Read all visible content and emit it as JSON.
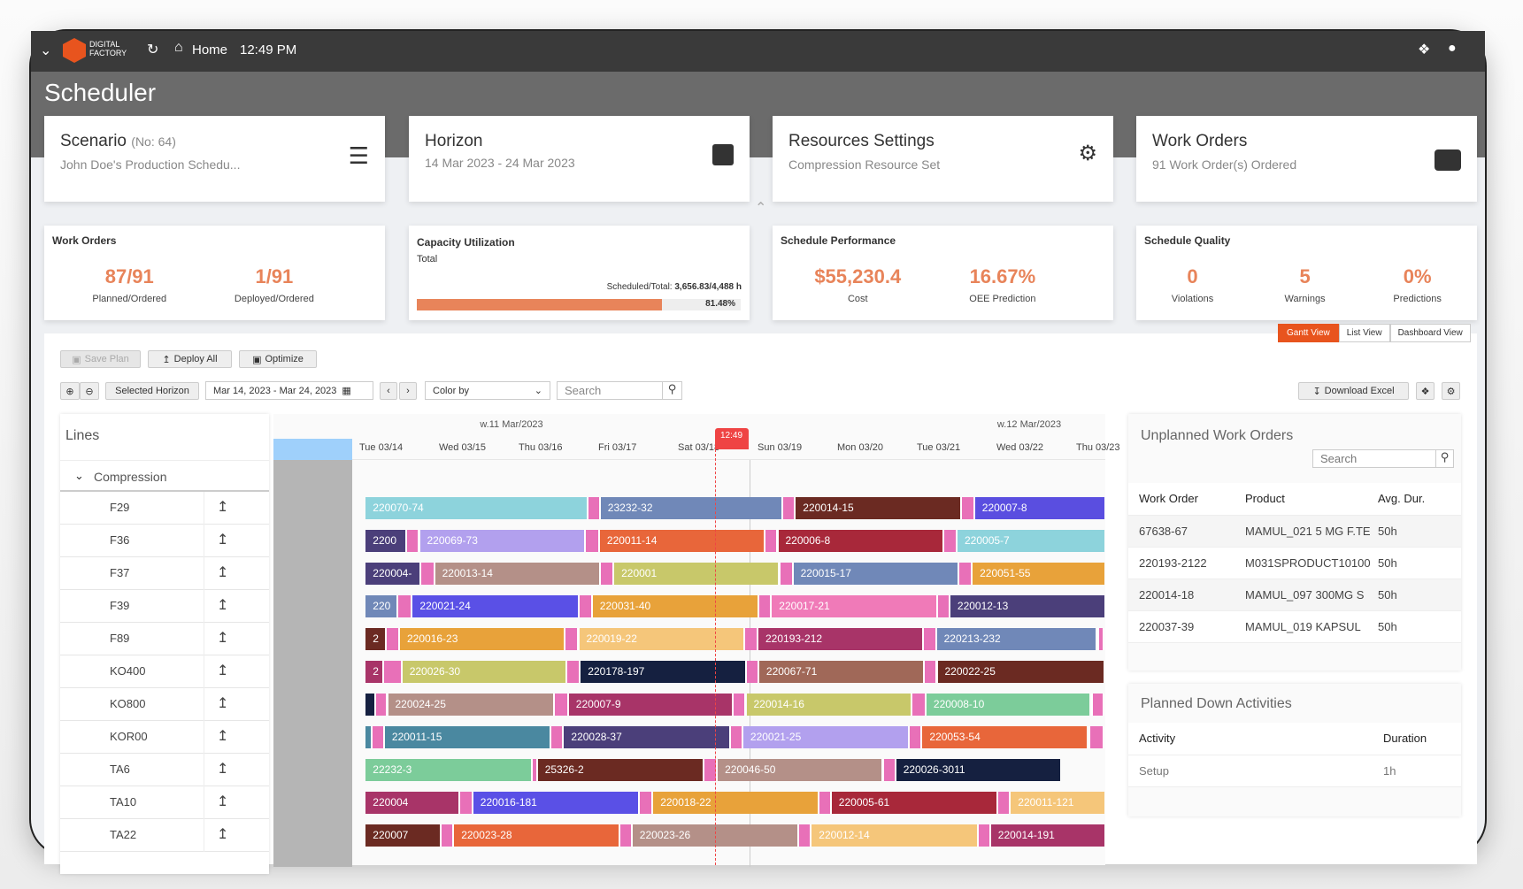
{
  "topbar": {
    "logo_line1": "DIGITAL",
    "logo_line2": "FACTORY",
    "home": "Home",
    "time": "12:49 PM"
  },
  "page_title": "Scheduler",
  "summary_cards": [
    {
      "title": "Scenario",
      "title_suffix": "(No: 64)",
      "subtitle": "John Doe's Production Schedu...",
      "icon": "list-icon"
    },
    {
      "title": "Horizon",
      "title_suffix": "",
      "subtitle": "14 Mar 2023 - 24 Mar 2023",
      "icon": "calendar-icon"
    },
    {
      "title": "Resources Settings",
      "title_suffix": "",
      "subtitle": "Compression Resource Set",
      "icon": "gears-icon"
    },
    {
      "title": "Work Orders",
      "title_suffix": "",
      "subtitle": "91 Work Order(s) Ordered",
      "icon": "list-alt-icon"
    }
  ],
  "kpi": {
    "work_orders": {
      "title": "Work Orders",
      "items": [
        {
          "value": "87/91",
          "label": "Planned/Ordered"
        },
        {
          "value": "1/91",
          "label": "Deployed/Ordered"
        }
      ]
    },
    "capacity": {
      "title": "Capacity Utilization",
      "sub": "Total",
      "scheduled_label": "Scheduled/Total:",
      "scheduled_value": "3,656.83/4,488 h",
      "percent_text": "81.48%",
      "percent": 81.48
    },
    "performance": {
      "title": "Schedule Performance",
      "items": [
        {
          "value": "$55,230.4",
          "label": "Cost"
        },
        {
          "value": "16.67%",
          "label": "OEE Prediction"
        }
      ]
    },
    "quality": {
      "title": "Schedule Quality",
      "items": [
        {
          "value": "0",
          "label": "Violations"
        },
        {
          "value": "5",
          "label": "Warnings"
        },
        {
          "value": "0%",
          "label": "Predictions"
        }
      ]
    }
  },
  "views": [
    "Gantt View",
    "List View",
    "Dashboard View"
  ],
  "toolbar": {
    "save": "Save Plan",
    "deploy": "Deploy All",
    "optimize": "Optimize",
    "selected_horizon": "Selected Horizon",
    "date_range": "Mar 14, 2023 - Mar 24, 2023",
    "color_by": "Color by",
    "search_placeholder": "Search",
    "download": "Download Excel"
  },
  "gantt": {
    "lines_title": "Lines",
    "group": "Compression",
    "weeks": [
      {
        "label": "w.11 Mar/2023",
        "day": 2
      },
      {
        "label": "w.12 Mar/2023",
        "day": 8.5
      }
    ],
    "days": [
      "Tue 03/14",
      "Wed 03/15",
      "Thu 03/16",
      "Fri 03/17",
      "Sat 03/18",
      "Sun 03/19",
      "Mon 03/20",
      "Tue 03/21",
      "Wed 03/22",
      "Thu 03/23"
    ],
    "now_label": "12:49",
    "now_day": 4.55,
    "rows": [
      {
        "line": "F29",
        "bars": [
          [
            0.17,
            2.94,
            "220070-74",
            "#8dd3dc"
          ],
          [
            3.12,
            5.39,
            "23232-32",
            "#7088b8"
          ],
          [
            5.57,
            7.63,
            "220014-15",
            "#6b2a22"
          ],
          [
            7.82,
            9.44,
            "220007-8",
            "#5a4ee0"
          ]
        ]
      },
      {
        "line": "F36",
        "bars": [
          [
            0.17,
            0.67,
            "2200",
            "#4b3f7a"
          ],
          [
            0.85,
            2.91,
            "220069-73",
            "#b2a0ee"
          ],
          [
            3.11,
            5.17,
            "220011-14",
            "#e8663a"
          ],
          [
            5.35,
            7.41,
            "220006-8",
            "#a8283a"
          ],
          [
            7.6,
            9.44,
            "220005-7",
            "#8dd3dc"
          ]
        ]
      },
      {
        "line": "F37",
        "bars": [
          [
            0.17,
            0.84,
            "220004-",
            "#4b3f7a"
          ],
          [
            1.04,
            3.1,
            "220013-14",
            "#b49088"
          ],
          [
            3.29,
            5.35,
            "220001",
            "#c8c86a"
          ],
          [
            5.54,
            7.6,
            "220015-17",
            "#7088b8"
          ],
          [
            7.79,
            9.44,
            "220051-55",
            "#e8a23a"
          ]
        ]
      },
      {
        "line": "F39",
        "bars": [
          [
            0.17,
            0.56,
            "220",
            "#7088b8"
          ],
          [
            0.76,
            2.83,
            "220021-24",
            "#5a50e6"
          ],
          [
            3.02,
            5.09,
            "220031-40",
            "#e8a23a"
          ],
          [
            5.27,
            7.33,
            "220017-21",
            "#f07ab8"
          ],
          [
            7.51,
            9.44,
            "220012-13",
            "#4b3f7a"
          ]
        ]
      },
      {
        "line": "F89",
        "bars": [
          [
            0.17,
            0.41,
            "2",
            "#6b2a22"
          ],
          [
            0.6,
            2.66,
            "220016-23",
            "#e8a23a"
          ],
          [
            2.85,
            4.91,
            "220019-22",
            "#f5c67a"
          ],
          [
            5.1,
            7.16,
            "220193-212",
            "#a83468"
          ],
          [
            7.34,
            9.33,
            "220213-232",
            "#7088b8"
          ]
        ]
      },
      {
        "line": "KO400",
        "bars": [
          [
            0.17,
            0.38,
            "2",
            "#a83468"
          ],
          [
            0.63,
            2.68,
            "220026-30",
            "#c8c86a"
          ],
          [
            2.87,
            4.93,
            "220178-197",
            "#152040"
          ],
          [
            5.11,
            7.17,
            "220067-71",
            "#a06858"
          ],
          [
            7.35,
            9.43,
            "220022-25",
            "#6b2a22"
          ]
        ]
      },
      {
        "line": "KO800",
        "bars": [
          [
            0.17,
            0.28,
            "",
            "#152040"
          ],
          [
            0.45,
            2.52,
            "220024-25",
            "#b49088"
          ],
          [
            2.72,
            4.77,
            "220007-9",
            "#a83468"
          ],
          [
            4.95,
            7.01,
            "220014-16",
            "#c8c86a"
          ],
          [
            7.21,
            9.26,
            "220008-10",
            "#7ccc9a"
          ]
        ]
      },
      {
        "line": "KOR00",
        "bars": [
          [
            0.17,
            0.23,
            "",
            "#4a88a0"
          ],
          [
            0.41,
            2.48,
            "220011-15",
            "#4a88a0"
          ],
          [
            2.66,
            4.73,
            "220028-37",
            "#4b3f7a"
          ],
          [
            4.91,
            6.98,
            "220021-25",
            "#b2a0ee"
          ],
          [
            7.16,
            9.22,
            "220053-54",
            "#e8663a"
          ]
        ]
      },
      {
        "line": "TA6",
        "bars": [
          [
            0.17,
            2.24,
            "22232-3",
            "#7ccc9a"
          ],
          [
            2.33,
            4.4,
            "25326-2",
            "#6b2a22"
          ],
          [
            4.59,
            6.65,
            "220046-50",
            "#b49088"
          ],
          [
            6.83,
            8.89,
            "220026-3011",
            "#152040"
          ]
        ]
      },
      {
        "line": "TA10",
        "bars": [
          [
            0.17,
            1.33,
            "220004",
            "#a83468"
          ],
          [
            1.52,
            3.59,
            "220016-181",
            "#5a50e6"
          ],
          [
            3.78,
            5.84,
            "220018-22",
            "#e8a23a"
          ],
          [
            6.02,
            8.09,
            "220005-61",
            "#a8283a"
          ],
          [
            8.27,
            9.44,
            "220011-121",
            "#f5c67a"
          ]
        ]
      },
      {
        "line": "TA22",
        "bars": [
          [
            0.17,
            1.1,
            "220007",
            "#6b2a22"
          ],
          [
            1.28,
            3.34,
            "220023-28",
            "#e8663a"
          ],
          [
            3.52,
            5.59,
            "220023-26",
            "#b49088"
          ],
          [
            5.77,
            7.84,
            "220012-14",
            "#f5c67a"
          ],
          [
            8.02,
            9.44,
            "220014-191",
            "#a83468"
          ]
        ]
      }
    ]
  },
  "unplanned": {
    "title": "Unplanned Work Orders",
    "search_placeholder": "Search",
    "columns": [
      "Work Order",
      "Product",
      "Avg. Dur."
    ],
    "rows": [
      [
        "67638-67",
        "MAMUL_021 5 MG F.TE",
        "50h"
      ],
      [
        "220193-2122",
        "M031SPRODUCT10100",
        "50h"
      ],
      [
        "220014-18",
        "MAMUL_097 300MG S",
        "50h"
      ],
      [
        "220037-39",
        "MAMUL_019 KAPSUL",
        "50h"
      ]
    ]
  },
  "planned_down": {
    "title": "Planned Down Activities",
    "columns": [
      "Activity",
      "Duration"
    ],
    "rows": [
      [
        "Setup",
        "1h"
      ]
    ]
  },
  "colors": {
    "accent": "#e8541e",
    "kpi": "#e8845a",
    "topbar": "#3a3a3a",
    "band": "#6b6b6b",
    "setup": "#e870b8",
    "now": "#ef4444"
  }
}
